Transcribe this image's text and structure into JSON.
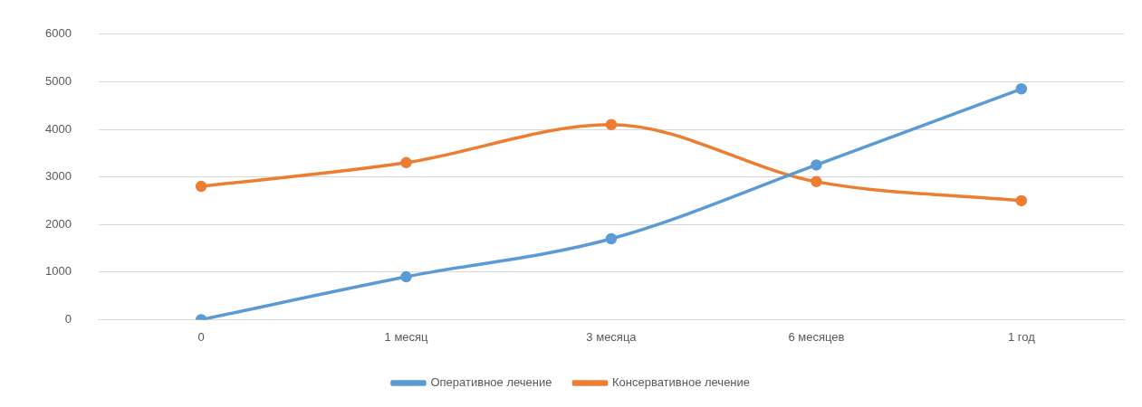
{
  "chart_data": {
    "type": "line",
    "categories": [
      "0",
      "1 месяц",
      "3 месяца",
      "6 месяцев",
      "1 год"
    ],
    "series": [
      {
        "name": "Оперативное лечение",
        "color": "#5b9bd5",
        "values": [
          0,
          900,
          1700,
          3250,
          4850
        ]
      },
      {
        "name": "Консервативное лечение",
        "color": "#ed7d31",
        "values": [
          2800,
          3300,
          4100,
          2900,
          2500
        ]
      }
    ],
    "ylim": [
      0,
      6000
    ],
    "yticks": [
      0,
      1000,
      2000,
      3000,
      4000,
      5000,
      6000
    ],
    "grid": "y",
    "legend": "bottom",
    "marker": "circle",
    "line_style": "solid"
  }
}
